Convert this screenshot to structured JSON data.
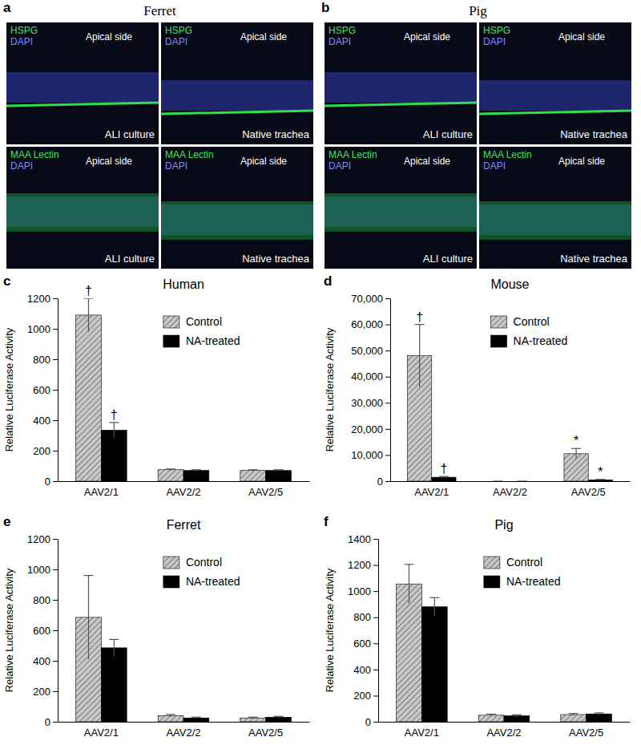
{
  "figure": {
    "image_panels": [
      {
        "label": "a",
        "title": "Ferret",
        "images": [
          {
            "stain": "HSPG",
            "nuclear_stain": "DAPI",
            "orientation_label": "Apical side",
            "sample": "ALI culture"
          },
          {
            "stain": "HSPG",
            "nuclear_stain": "DAPI",
            "orientation_label": "Apical side",
            "sample": "Native trachea"
          },
          {
            "stain": "MAA Lectin",
            "nuclear_stain": "DAPI",
            "orientation_label": "Apical side",
            "sample": "ALI culture"
          },
          {
            "stain": "MAA Lectin",
            "nuclear_stain": "DAPI",
            "orientation_label": "Apical side",
            "sample": "Native trachea"
          }
        ]
      },
      {
        "label": "b",
        "title": "Pig",
        "images": [
          {
            "stain": "HSPG",
            "nuclear_stain": "DAPI",
            "orientation_label": "Apical side",
            "sample": "ALI culture"
          },
          {
            "stain": "HSPG",
            "nuclear_stain": "DAPI",
            "orientation_label": "Apical side",
            "sample": "Native trachea"
          },
          {
            "stain": "MAA Lectin",
            "nuclear_stain": "DAPI",
            "orientation_label": "Apical side",
            "sample": "ALI culture"
          },
          {
            "stain": "MAA Lectin",
            "nuclear_stain": "DAPI",
            "orientation_label": "Apical side",
            "sample": "Native trachea"
          }
        ]
      }
    ]
  },
  "chart_data": [
    {
      "panel_label": "c",
      "type": "bar",
      "title": "Human",
      "y_label": "Relative Luciferase Activity",
      "categories": [
        "AAV2/1",
        "AAV2/2",
        "AAV2/5"
      ],
      "series": [
        {
          "name": "Control",
          "color": "#c8c8c8",
          "values": [
            1090,
            75,
            70
          ],
          "errors": [
            110,
            5,
            5
          ],
          "annotations": [
            "†",
            null,
            null
          ]
        },
        {
          "name": "NA-treated",
          "color": "#000000",
          "values": [
            335,
            70,
            70
          ],
          "errors": [
            50,
            5,
            5
          ],
          "annotations": [
            "†",
            null,
            null
          ]
        }
      ],
      "ylim": [
        0,
        1200
      ],
      "yticks": [
        0,
        200,
        400,
        600,
        800,
        1000,
        1200
      ],
      "legend": "upper right"
    },
    {
      "panel_label": "d",
      "type": "bar",
      "title": "Mouse",
      "y_label": "Relative Luciferase Activity",
      "categories": [
        "AAV2/1",
        "AAV2/2",
        "AAV2/5"
      ],
      "series": [
        {
          "name": "Control",
          "color": "#c8c8c8",
          "values": [
            48000,
            0,
            10500
          ],
          "errors": [
            12000,
            0,
            2000
          ],
          "annotations": [
            "†",
            null,
            "*"
          ]
        },
        {
          "name": "NA-treated",
          "color": "#000000",
          "values": [
            1500,
            0,
            500
          ],
          "errors": [
            300,
            0,
            200
          ],
          "annotations": [
            "†",
            null,
            "*"
          ]
        }
      ],
      "ylim": [
        0,
        70000
      ],
      "yticks": [
        0,
        {
          "value": 10000,
          "label": "10,000"
        },
        {
          "value": 20000,
          "label": "20,000"
        },
        {
          "value": 30000,
          "label": "30,000"
        },
        {
          "value": 40000,
          "label": "40,000"
        },
        {
          "value": 50000,
          "label": "50,000"
        },
        {
          "value": 60000,
          "label": "60,000"
        },
        {
          "value": 70000,
          "label": "70,000"
        }
      ],
      "legend": "upper right"
    },
    {
      "panel_label": "e",
      "type": "bar",
      "title": "Ferret",
      "y_label": "Relative Luciferase Activity",
      "categories": [
        "AAV2/1",
        "AAV2/2",
        "AAV2/5"
      ],
      "series": [
        {
          "name": "Control",
          "color": "#c8c8c8",
          "values": [
            685,
            40,
            25
          ],
          "errors": [
            275,
            8,
            5
          ]
        },
        {
          "name": "NA-treated",
          "color": "#000000",
          "values": [
            485,
            25,
            30
          ],
          "errors": [
            55,
            5,
            5
          ]
        }
      ],
      "ylim": [
        0,
        1200
      ],
      "yticks": [
        0,
        200,
        400,
        600,
        800,
        1000,
        1200
      ],
      "legend": "upper right"
    },
    {
      "panel_label": "f",
      "type": "bar",
      "title": "Pig",
      "y_label": "Relative Luciferase Activity",
      "categories": [
        "AAV2/1",
        "AAV2/2",
        "AAV2/5"
      ],
      "series": [
        {
          "name": "Control",
          "color": "#c8c8c8",
          "values": [
            1055,
            50,
            55
          ],
          "errors": [
            150,
            8,
            8
          ]
        },
        {
          "name": "NA-treated",
          "color": "#000000",
          "values": [
            880,
            45,
            60
          ],
          "errors": [
            70,
            8,
            8
          ]
        }
      ],
      "ylim": [
        0,
        1400
      ],
      "yticks": [
        0,
        200,
        400,
        600,
        800,
        1000,
        1200,
        1400
      ],
      "legend": "upper right"
    }
  ]
}
